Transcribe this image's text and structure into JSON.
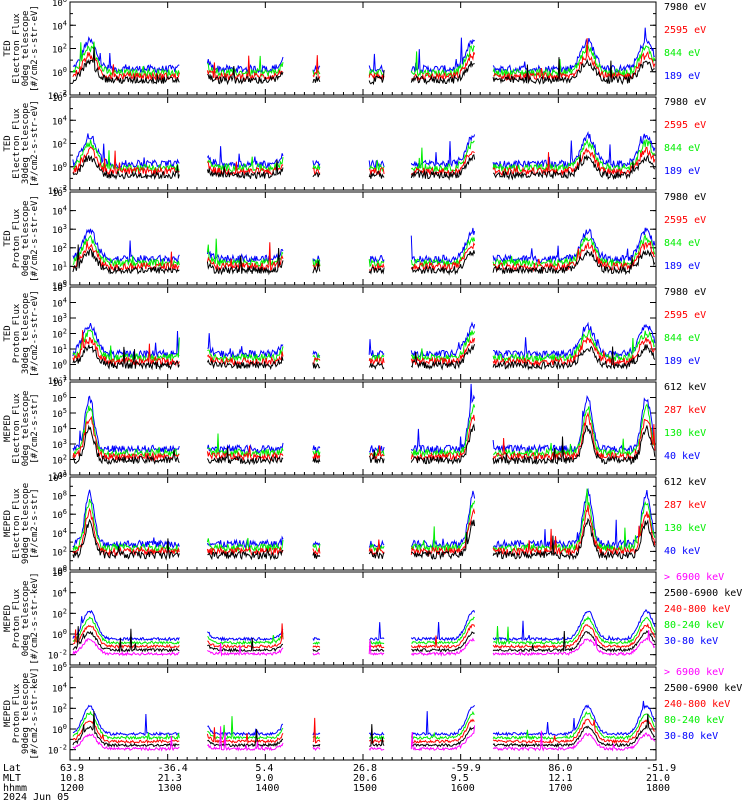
{
  "colors": {
    "black": "#000000",
    "red": "#ff0000",
    "green": "#00ee00",
    "blue": "#0000ff",
    "magenta": "#ff00ff"
  },
  "chart_data": [
    {
      "type": "line",
      "instrument": "TED",
      "ylabel": [
        "TED",
        "Electron Flux",
        "0deg telescope",
        "[#/cm2-s-str-eV]"
      ],
      "ylim": [
        0.01,
        1000000
      ],
      "yscale": "log",
      "ytick_labels": [
        "10^-2",
        "10^0",
        "10^2",
        "10^4",
        "10^6"
      ],
      "series": [
        {
          "name": "7980 eV",
          "color": "black"
        },
        {
          "name": "2595 eV",
          "color": "red"
        },
        {
          "name": "844 eV",
          "color": "green"
        },
        {
          "name": "189 eV",
          "color": "blue"
        }
      ]
    },
    {
      "type": "line",
      "instrument": "TED",
      "ylabel": [
        "TED",
        "Electron Flux",
        "30deg telescope",
        "[#/cm2-s-str-eV]"
      ],
      "ylim": [
        0.01,
        1000000
      ],
      "yscale": "log",
      "ytick_labels": [
        "10^-2",
        "10^0",
        "10^2",
        "10^4",
        "10^6"
      ],
      "series": [
        {
          "name": "7980 eV",
          "color": "black"
        },
        {
          "name": "2595 eV",
          "color": "red"
        },
        {
          "name": "844 eV",
          "color": "green"
        },
        {
          "name": "189 eV",
          "color": "blue"
        }
      ]
    },
    {
      "type": "line",
      "instrument": "TED",
      "ylabel": [
        "TED",
        "Proton Flux",
        "0deg telescope",
        "[#/cm2-s-str-eV]"
      ],
      "ylim": [
        1,
        100000
      ],
      "yscale": "log",
      "ytick_labels": [
        "10^0",
        "10^1",
        "10^2",
        "10^3",
        "10^4",
        "10^5"
      ],
      "series": [
        {
          "name": "7980 eV",
          "color": "black"
        },
        {
          "name": "2595 eV",
          "color": "red"
        },
        {
          "name": "844 eV",
          "color": "green"
        },
        {
          "name": "189 eV",
          "color": "blue"
        }
      ]
    },
    {
      "type": "line",
      "instrument": "TED",
      "ylabel": [
        "TED",
        "Proton Flux",
        "30deg telescope",
        "[#/cm2-s-str-eV]"
      ],
      "ylim": [
        0.1,
        100000
      ],
      "yscale": "log",
      "ytick_labels": [
        "10^-1",
        "10^0",
        "10^1",
        "10^2",
        "10^3",
        "10^4",
        "10^5"
      ],
      "series": [
        {
          "name": "7980 eV",
          "color": "black"
        },
        {
          "name": "2595 eV",
          "color": "red"
        },
        {
          "name": "844 eV",
          "color": "green"
        },
        {
          "name": "189 eV",
          "color": "blue"
        }
      ]
    },
    {
      "type": "line",
      "instrument": "MEPED",
      "ylabel": [
        "MEPED",
        "Electron Flux",
        "0deg telescope",
        "[#/cm2-s-str]"
      ],
      "ylim": [
        10,
        10000000
      ],
      "yscale": "log",
      "ytick_labels": [
        "10^1",
        "10^2",
        "10^3",
        "10^4",
        "10^5",
        "10^6",
        "10^7"
      ],
      "series": [
        {
          "name": "612 keV",
          "color": "black"
        },
        {
          "name": "287 keV",
          "color": "red"
        },
        {
          "name": "130 keV",
          "color": "green"
        },
        {
          "name": "40 keV",
          "color": "blue"
        }
      ]
    },
    {
      "type": "line",
      "instrument": "MEPED",
      "ylabel": [
        "MEPED",
        "Electron Flux",
        "90deg telescope",
        "[#/cm2-s-str]"
      ],
      "ylim": [
        1,
        10000000000
      ],
      "yscale": "log",
      "ytick_labels": [
        "10^0",
        "10^2",
        "10^4",
        "10^6",
        "10^8",
        "10^10"
      ],
      "series": [
        {
          "name": "612 keV",
          "color": "black"
        },
        {
          "name": "287 keV",
          "color": "red"
        },
        {
          "name": "130 keV",
          "color": "green"
        },
        {
          "name": "40 keV",
          "color": "blue"
        }
      ]
    },
    {
      "type": "line",
      "instrument": "MEPED",
      "ylabel": [
        "MEPED",
        "Proton Flux",
        "0deg telescope",
        "[#/cm2-s-str-keV]"
      ],
      "ylim": [
        0.001,
        1000000
      ],
      "yscale": "log",
      "ytick_labels": [
        "10^-2",
        "10^0",
        "10^2",
        "10^4",
        "10^6"
      ],
      "series": [
        {
          "name": "> 6900 keV",
          "color": "magenta"
        },
        {
          "name": "2500-6900 keV",
          "color": "black"
        },
        {
          "name": "240-800 keV",
          "color": "red"
        },
        {
          "name": "80-240 keV",
          "color": "green"
        },
        {
          "name": "30-80 keV",
          "color": "blue"
        }
      ]
    },
    {
      "type": "line",
      "instrument": "MEPED",
      "ylabel": [
        "MEPED",
        "Proton Flux",
        "90deg telescope",
        "[#/cm2-s-str-keV]"
      ],
      "ylim": [
        0.001,
        1000000
      ],
      "yscale": "log",
      "ytick_labels": [
        "10^-2",
        "10^0",
        "10^2",
        "10^4",
        "10^6"
      ],
      "series": [
        {
          "name": "> 6900 keV",
          "color": "magenta"
        },
        {
          "name": "2500-6900 keV",
          "color": "black"
        },
        {
          "name": "240-800 keV",
          "color": "red"
        },
        {
          "name": "80-240 keV",
          "color": "green"
        },
        {
          "name": "30-80 keV",
          "color": "blue"
        }
      ]
    }
  ],
  "x_axis": {
    "range": [
      "1200",
      "1800"
    ],
    "row_labels": {
      "lat": "Lat",
      "mlt": "MLT",
      "hhmm": "hhmm",
      "date": "2024 Jun 05"
    },
    "ticks": [
      {
        "time": 1200,
        "lat": "63.9",
        "mlt": "10.8",
        "hhmm": "1200"
      },
      {
        "time": 1300,
        "lat": "-36.4",
        "mlt": "21.3",
        "hhmm": "1300"
      },
      {
        "time": 1400,
        "lat": "5.4",
        "mlt": "9.0",
        "hhmm": "1400"
      },
      {
        "time": 1500,
        "lat": "26.8",
        "mlt": "20.6",
        "hhmm": "1500"
      },
      {
        "time": 1600,
        "lat": "-59.9",
        "mlt": "9.5",
        "hhmm": "1600"
      },
      {
        "time": 1700,
        "lat": "86.0",
        "mlt": "12.1",
        "hhmm": "1700"
      },
      {
        "time": 1800,
        "lat": "-51.9",
        "mlt": "21.0",
        "hhmm": "1800"
      }
    ]
  }
}
